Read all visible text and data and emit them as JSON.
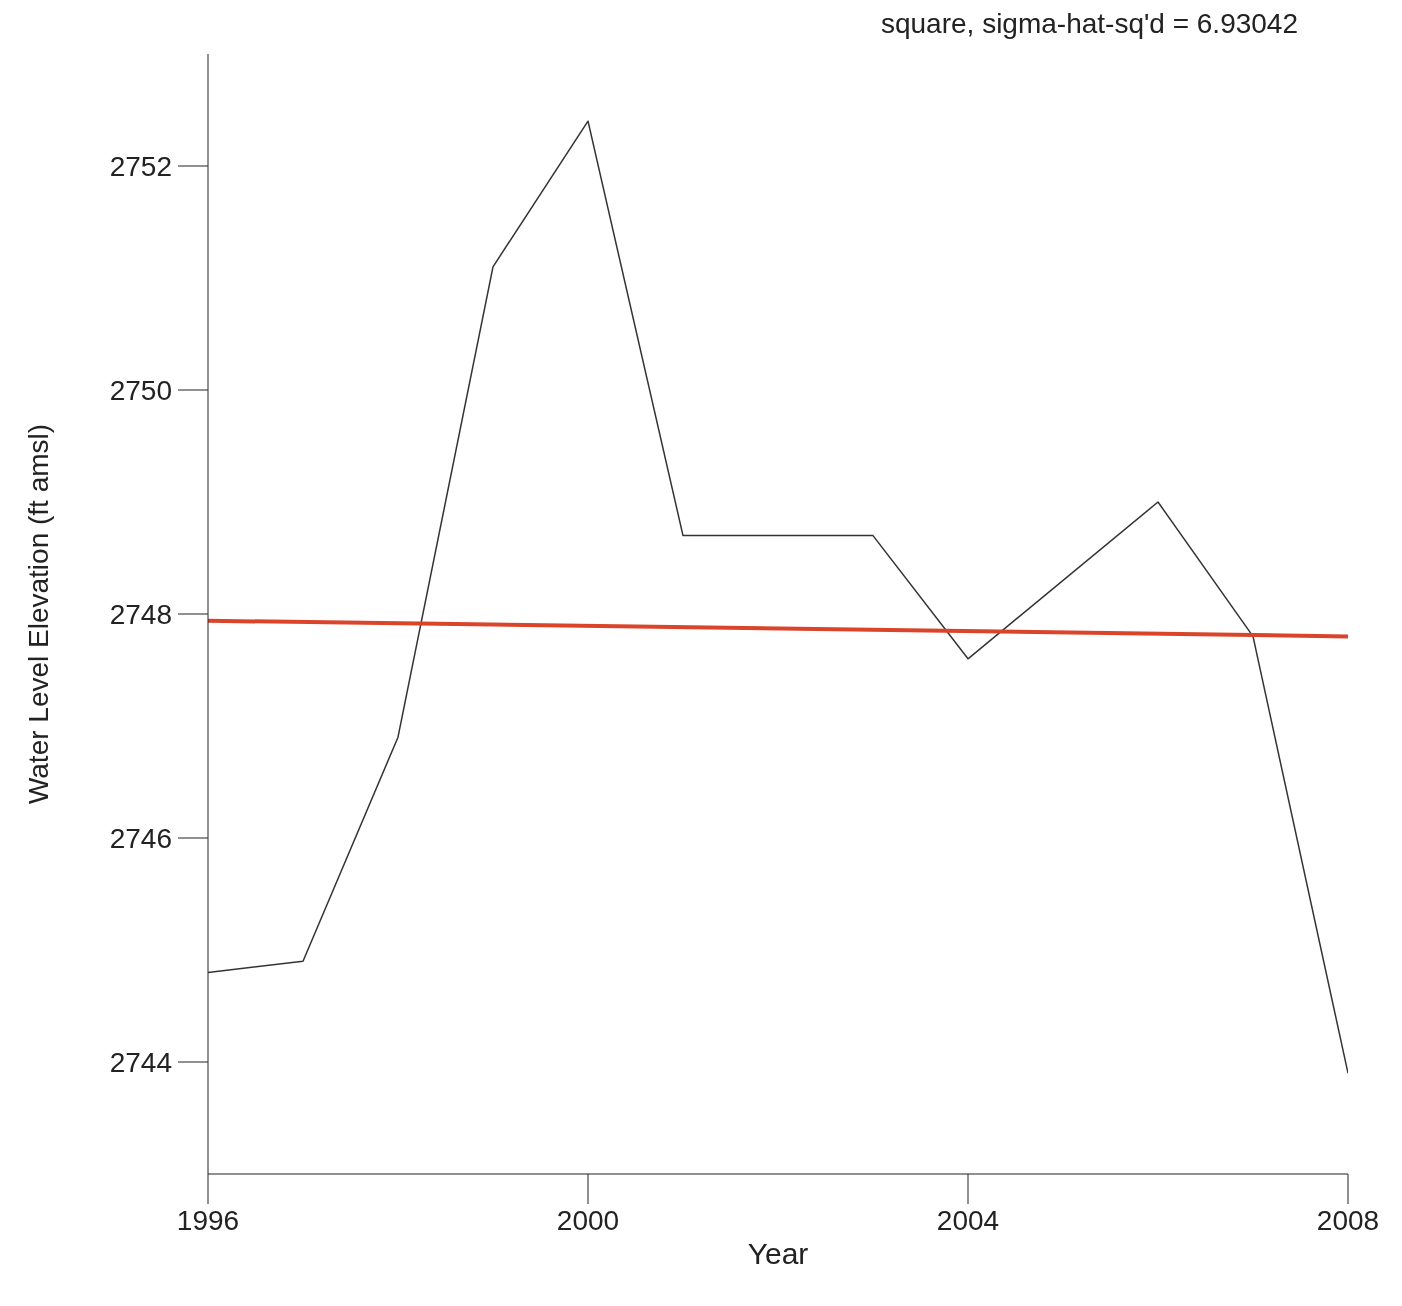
{
  "chart_data": {
    "type": "line",
    "xlabel": "Year",
    "ylabel": "Water Level Elevation (ft amsl)",
    "annotations": [
      "square, sigma-hat-sq'd = 6.93042"
    ],
    "xlim": [
      1996,
      2008
    ],
    "xticks": [
      1996,
      2000,
      2004,
      2008
    ],
    "ylim": [
      2743,
      2753
    ],
    "yticks": [
      2744,
      2746,
      2748,
      2750,
      2752
    ],
    "grid": false,
    "marker": "none",
    "line_style": "solid",
    "series": [
      {
        "color": "#333333",
        "x": [
          1996,
          1997,
          1998,
          1999,
          2000,
          2001,
          2003,
          2004,
          2006,
          2007,
          2008
        ],
        "values": [
          2744.8,
          2744.9,
          2746.9,
          2751.1,
          2752.4,
          2748.7,
          2748.7,
          2747.6,
          2749.0,
          2747.8,
          2743.9
        ]
      },
      {
        "type": "line",
        "color": "#d9442b",
        "x": [
          1996,
          2008
        ],
        "values": [
          2747.94,
          2747.8
        ]
      }
    ]
  }
}
